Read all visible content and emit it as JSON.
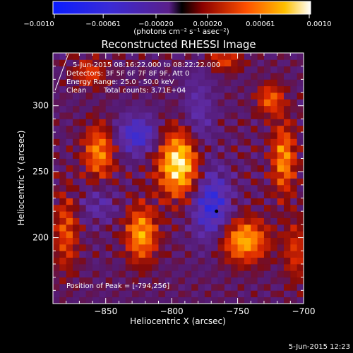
{
  "chart_data": {
    "type": "heatmap",
    "title": "Reconstructed RHESSI Image",
    "xlabel": "Heliocentric X (arcsec)",
    "ylabel": "Heliocentric Y (arcsec)",
    "xlim": [
      -890,
      -700
    ],
    "ylim": [
      150,
      340
    ],
    "x_ticks": [
      -850,
      -800,
      -750,
      -700
    ],
    "x_tick_labels": [
      "−850",
      "−800",
      "−750",
      "−700"
    ],
    "y_ticks": [
      200,
      250,
      300
    ],
    "y_tick_labels": [
      "200",
      "250",
      "300"
    ],
    "colorbar": {
      "ticks": [
        -0.001,
        -0.00061,
        -0.0002,
        0.0002,
        0.00061,
        0.001
      ],
      "tick_labels": [
        "−0.0010",
        "−0.00061",
        "−0.00020",
        "0.00020",
        "0.00061",
        "0.0010"
      ],
      "range": [
        -0.001,
        0.001
      ],
      "unit_label": "(photons cm⁻² s⁻¹ asec⁻²)"
    },
    "annotations": {
      "time_range": "5-Jun-2015 08:16:22.000 to 08:22:22.000",
      "detectors": "Detectors: 3F 5F 6F 7F 8F 9F, Att 0",
      "energy_range": "Energy Range: 25.0 - 50.0 keV",
      "method": "Clean",
      "total_counts": "Total counts: 3.71E+04",
      "peak": "Position of Peak = [-794,256]"
    },
    "peak_position": [
      -794,
      256
    ],
    "blobs": [
      {
        "x": -794,
        "y": 256,
        "sx": 11,
        "sy": 17,
        "amp": 1.0
      },
      {
        "x": -823,
        "y": 203,
        "sx": 8,
        "sy": 14,
        "amp": 0.72
      },
      {
        "x": -745,
        "y": 198,
        "sx": 12,
        "sy": 11,
        "amp": 0.75
      },
      {
        "x": -855,
        "y": 265,
        "sx": 8,
        "sy": 14,
        "amp": 0.62
      },
      {
        "x": -715,
        "y": 260,
        "sx": 6,
        "sy": 18,
        "amp": 0.65
      },
      {
        "x": -725,
        "y": 305,
        "sx": 7,
        "sy": 8,
        "amp": 0.5
      },
      {
        "x": -880,
        "y": 205,
        "sx": 6,
        "sy": 20,
        "amp": 0.45
      },
      {
        "x": -862,
        "y": 325,
        "sx": 8,
        "sy": 7,
        "amp": 0.4
      },
      {
        "x": -760,
        "y": 335,
        "sx": 9,
        "sy": 6,
        "amp": 0.38
      },
      {
        "x": -706,
        "y": 190,
        "sx": 6,
        "sy": 16,
        "amp": 0.35
      },
      {
        "x": -826,
        "y": 278,
        "sx": 11,
        "sy": 10,
        "amp": -0.55
      },
      {
        "x": -770,
        "y": 225,
        "sx": 10,
        "sy": 18,
        "amp": -0.62
      },
      {
        "x": -780,
        "y": 290,
        "sx": 8,
        "sy": 25,
        "amp": -0.3
      },
      {
        "x": -855,
        "y": 225,
        "sx": 10,
        "sy": 10,
        "amp": -0.25
      }
    ]
  },
  "footer": {
    "timestamp": "5-Jun-2015 12:23"
  }
}
